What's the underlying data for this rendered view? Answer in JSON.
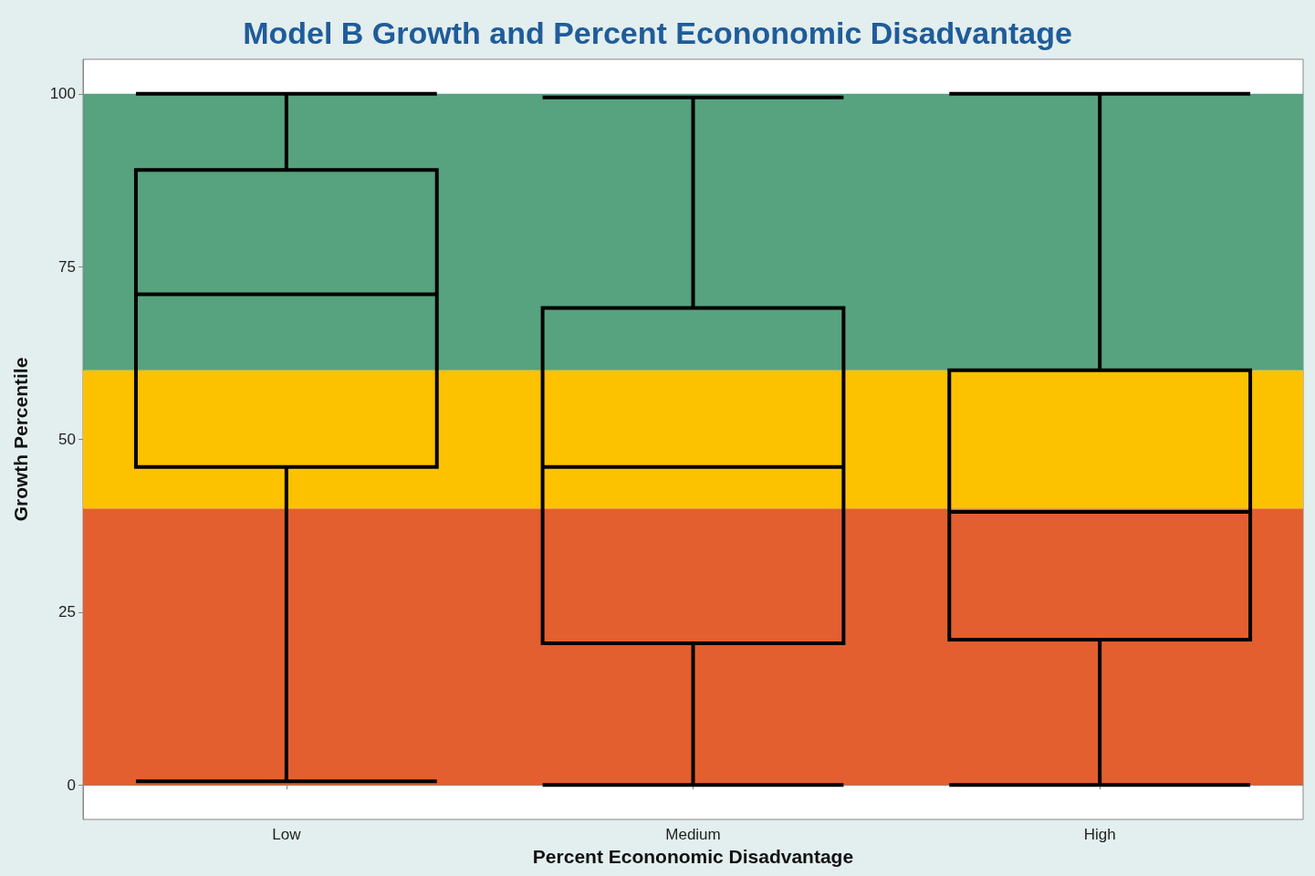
{
  "chart_data": {
    "type": "box",
    "title": "Model B Growth and Percent Econonomic Disadvantage",
    "xlabel": "Percent Econonomic Disadvantage",
    "ylabel": "Growth Percentile",
    "categories": [
      "Low",
      "Medium",
      "High"
    ],
    "series": [
      {
        "color": "#000000",
        "boxes": [
          {
            "low": 0.5,
            "q1": 46,
            "median": 71,
            "q3": 89,
            "high": 100
          },
          {
            "low": 0,
            "q1": 20.5,
            "median": 46,
            "q3": 69,
            "high": 99.5
          },
          {
            "low": 0,
            "q1": 21,
            "median": 39.5,
            "q3": 60,
            "high": 100
          }
        ]
      }
    ],
    "ylim": [
      -5,
      105
    ],
    "yticks": [
      0,
      25,
      50,
      75,
      100
    ],
    "bands": [
      {
        "axis": "y",
        "from": 0,
        "to": 40,
        "color": "#e35f2f"
      },
      {
        "axis": "y",
        "from": 40,
        "to": 60,
        "color": "#fcc200"
      },
      {
        "axis": "y",
        "from": 60,
        "to": 100,
        "color": "#57a27f"
      }
    ]
  }
}
